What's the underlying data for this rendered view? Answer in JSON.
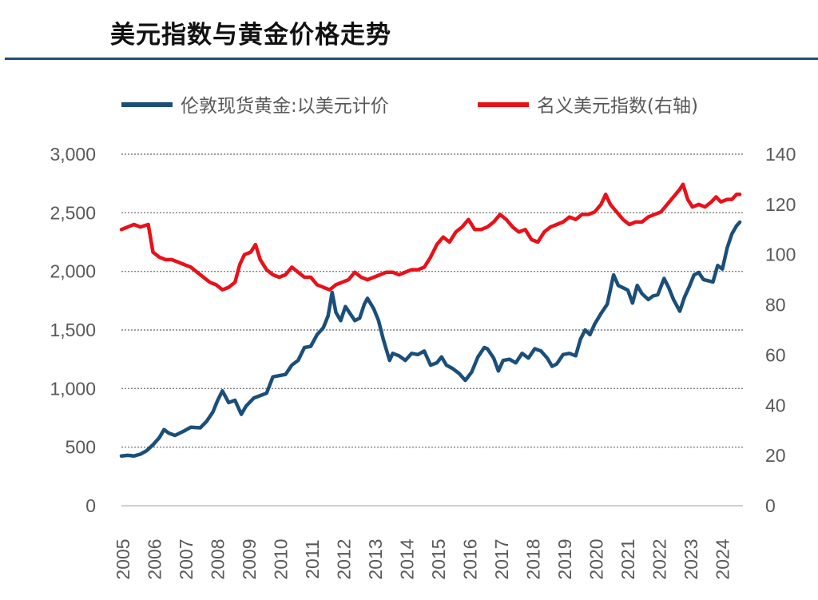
{
  "page": {
    "title": "美元指数与黄金价格走势"
  },
  "chart_data": {
    "type": "line",
    "title": "美元指数与黄金价格走势",
    "x_ticks": [
      "2005",
      "2006",
      "2007",
      "2008",
      "2009",
      "2010",
      "2011",
      "2012",
      "2013",
      "2014",
      "2015",
      "2016",
      "2017",
      "2018",
      "2019",
      "2020",
      "2021",
      "2022",
      "2023",
      "2024"
    ],
    "x_range": [
      2005.0,
      2024.7
    ],
    "y_left": {
      "min": 0,
      "max": 3000,
      "ticks": [
        "0",
        "500",
        "1,000",
        "1,500",
        "2,000",
        "2,500",
        "3,000"
      ],
      "tick_values": [
        0,
        500,
        1000,
        1500,
        2000,
        2500,
        3000
      ]
    },
    "y_right": {
      "min": 0,
      "max": 140,
      "ticks": [
        "0",
        "20",
        "40",
        "60",
        "80",
        "100",
        "120",
        "140"
      ],
      "tick_values": [
        0,
        20,
        40,
        60,
        80,
        100,
        120,
        140
      ]
    },
    "grid": "horizontal dotted",
    "legend_position": "top",
    "colors": {
      "gold": "#1b4f7a",
      "dxy": "#e8111a",
      "grid": "#7f7f7f",
      "title_rule": "#1f4e79"
    },
    "series": [
      {
        "name": "伦敦现货黄金:以美元计价",
        "axis": "left",
        "points": [
          [
            2005.0,
            425
          ],
          [
            2005.2,
            430
          ],
          [
            2005.4,
            425
          ],
          [
            2005.6,
            440
          ],
          [
            2005.8,
            470
          ],
          [
            2006.0,
            520
          ],
          [
            2006.2,
            580
          ],
          [
            2006.35,
            650
          ],
          [
            2006.5,
            620
          ],
          [
            2006.7,
            600
          ],
          [
            2007.0,
            640
          ],
          [
            2007.2,
            670
          ],
          [
            2007.5,
            665
          ],
          [
            2007.7,
            720
          ],
          [
            2007.9,
            800
          ],
          [
            2008.05,
            900
          ],
          [
            2008.2,
            980
          ],
          [
            2008.4,
            880
          ],
          [
            2008.6,
            900
          ],
          [
            2008.8,
            780
          ],
          [
            2008.95,
            850
          ],
          [
            2009.2,
            920
          ],
          [
            2009.4,
            940
          ],
          [
            2009.6,
            960
          ],
          [
            2009.8,
            1100
          ],
          [
            2010.0,
            1110
          ],
          [
            2010.2,
            1120
          ],
          [
            2010.4,
            1200
          ],
          [
            2010.6,
            1240
          ],
          [
            2010.8,
            1350
          ],
          [
            2011.0,
            1360
          ],
          [
            2011.2,
            1460
          ],
          [
            2011.4,
            1520
          ],
          [
            2011.55,
            1620
          ],
          [
            2011.68,
            1820
          ],
          [
            2011.8,
            1650
          ],
          [
            2011.95,
            1580
          ],
          [
            2012.1,
            1700
          ],
          [
            2012.25,
            1640
          ],
          [
            2012.4,
            1580
          ],
          [
            2012.55,
            1600
          ],
          [
            2012.7,
            1720
          ],
          [
            2012.8,
            1770
          ],
          [
            2013.0,
            1680
          ],
          [
            2013.15,
            1580
          ],
          [
            2013.3,
            1420
          ],
          [
            2013.5,
            1240
          ],
          [
            2013.6,
            1300
          ],
          [
            2013.8,
            1280
          ],
          [
            2014.0,
            1240
          ],
          [
            2014.2,
            1300
          ],
          [
            2014.4,
            1290
          ],
          [
            2014.6,
            1320
          ],
          [
            2014.8,
            1200
          ],
          [
            2015.0,
            1220
          ],
          [
            2015.15,
            1270
          ],
          [
            2015.3,
            1200
          ],
          [
            2015.5,
            1170
          ],
          [
            2015.7,
            1130
          ],
          [
            2015.9,
            1070
          ],
          [
            2016.1,
            1140
          ],
          [
            2016.3,
            1270
          ],
          [
            2016.5,
            1350
          ],
          [
            2016.6,
            1340
          ],
          [
            2016.8,
            1260
          ],
          [
            2016.95,
            1150
          ],
          [
            2017.1,
            1240
          ],
          [
            2017.3,
            1250
          ],
          [
            2017.5,
            1220
          ],
          [
            2017.7,
            1300
          ],
          [
            2017.9,
            1260
          ],
          [
            2018.1,
            1340
          ],
          [
            2018.3,
            1320
          ],
          [
            2018.5,
            1260
          ],
          [
            2018.65,
            1190
          ],
          [
            2018.8,
            1210
          ],
          [
            2019.0,
            1290
          ],
          [
            2019.2,
            1300
          ],
          [
            2019.4,
            1280
          ],
          [
            2019.55,
            1420
          ],
          [
            2019.7,
            1500
          ],
          [
            2019.85,
            1460
          ],
          [
            2020.0,
            1550
          ],
          [
            2020.2,
            1640
          ],
          [
            2020.4,
            1720
          ],
          [
            2020.6,
            1970
          ],
          [
            2020.75,
            1880
          ],
          [
            2020.9,
            1860
          ],
          [
            2021.05,
            1840
          ],
          [
            2021.2,
            1730
          ],
          [
            2021.35,
            1880
          ],
          [
            2021.5,
            1810
          ],
          [
            2021.7,
            1760
          ],
          [
            2021.85,
            1790
          ],
          [
            2022.0,
            1800
          ],
          [
            2022.2,
            1940
          ],
          [
            2022.35,
            1860
          ],
          [
            2022.5,
            1760
          ],
          [
            2022.7,
            1660
          ],
          [
            2022.85,
            1780
          ],
          [
            2023.0,
            1870
          ],
          [
            2023.15,
            1970
          ],
          [
            2023.3,
            1990
          ],
          [
            2023.45,
            1930
          ],
          [
            2023.6,
            1920
          ],
          [
            2023.75,
            1910
          ],
          [
            2023.9,
            2050
          ],
          [
            2024.05,
            2020
          ],
          [
            2024.2,
            2200
          ],
          [
            2024.35,
            2320
          ],
          [
            2024.5,
            2390
          ],
          [
            2024.6,
            2420
          ]
        ]
      },
      {
        "name": "名义美元指数(右轴)",
        "axis": "right",
        "points": [
          [
            2005.0,
            110
          ],
          [
            2005.2,
            111
          ],
          [
            2005.4,
            112
          ],
          [
            2005.6,
            111
          ],
          [
            2005.85,
            112
          ],
          [
            2006.0,
            101
          ],
          [
            2006.2,
            99
          ],
          [
            2006.4,
            98
          ],
          [
            2006.6,
            98
          ],
          [
            2006.8,
            97
          ],
          [
            2007.0,
            96
          ],
          [
            2007.2,
            95
          ],
          [
            2007.4,
            93
          ],
          [
            2007.6,
            91
          ],
          [
            2007.8,
            89
          ],
          [
            2008.0,
            88
          ],
          [
            2008.2,
            86
          ],
          [
            2008.4,
            87
          ],
          [
            2008.6,
            89
          ],
          [
            2008.75,
            96
          ],
          [
            2008.9,
            100
          ],
          [
            2009.1,
            101
          ],
          [
            2009.25,
            104
          ],
          [
            2009.4,
            98
          ],
          [
            2009.6,
            94
          ],
          [
            2009.8,
            92
          ],
          [
            2010.0,
            91
          ],
          [
            2010.2,
            92
          ],
          [
            2010.4,
            95
          ],
          [
            2010.6,
            93
          ],
          [
            2010.8,
            91
          ],
          [
            2011.0,
            91
          ],
          [
            2011.2,
            88
          ],
          [
            2011.4,
            87
          ],
          [
            2011.6,
            86
          ],
          [
            2011.8,
            88
          ],
          [
            2012.0,
            89
          ],
          [
            2012.2,
            90
          ],
          [
            2012.4,
            93
          ],
          [
            2012.6,
            91
          ],
          [
            2012.8,
            90
          ],
          [
            2013.0,
            91
          ],
          [
            2013.2,
            92
          ],
          [
            2013.4,
            93
          ],
          [
            2013.6,
            93
          ],
          [
            2013.8,
            92
          ],
          [
            2014.0,
            93
          ],
          [
            2014.2,
            94
          ],
          [
            2014.4,
            94
          ],
          [
            2014.6,
            95
          ],
          [
            2014.8,
            99
          ],
          [
            2015.0,
            104
          ],
          [
            2015.2,
            107
          ],
          [
            2015.4,
            105
          ],
          [
            2015.6,
            109
          ],
          [
            2015.8,
            111
          ],
          [
            2016.0,
            114
          ],
          [
            2016.2,
            110
          ],
          [
            2016.4,
            110
          ],
          [
            2016.6,
            111
          ],
          [
            2016.8,
            113
          ],
          [
            2017.0,
            116
          ],
          [
            2017.2,
            114
          ],
          [
            2017.4,
            111
          ],
          [
            2017.6,
            109
          ],
          [
            2017.8,
            110
          ],
          [
            2018.0,
            106
          ],
          [
            2018.2,
            105
          ],
          [
            2018.4,
            109
          ],
          [
            2018.6,
            111
          ],
          [
            2018.8,
            112
          ],
          [
            2019.0,
            113
          ],
          [
            2019.2,
            115
          ],
          [
            2019.4,
            114
          ],
          [
            2019.6,
            116
          ],
          [
            2019.8,
            116
          ],
          [
            2020.0,
            117
          ],
          [
            2020.2,
            120
          ],
          [
            2020.35,
            124
          ],
          [
            2020.5,
            120
          ],
          [
            2020.7,
            117
          ],
          [
            2020.9,
            114
          ],
          [
            2021.1,
            112
          ],
          [
            2021.3,
            113
          ],
          [
            2021.5,
            113
          ],
          [
            2021.7,
            115
          ],
          [
            2021.9,
            116
          ],
          [
            2022.1,
            117
          ],
          [
            2022.3,
            120
          ],
          [
            2022.5,
            123
          ],
          [
            2022.7,
            126
          ],
          [
            2022.8,
            128
          ],
          [
            2022.95,
            122
          ],
          [
            2023.1,
            119
          ],
          [
            2023.3,
            120
          ],
          [
            2023.5,
            119
          ],
          [
            2023.7,
            121
          ],
          [
            2023.85,
            123
          ],
          [
            2024.0,
            121
          ],
          [
            2024.2,
            122
          ],
          [
            2024.35,
            122
          ],
          [
            2024.5,
            124
          ],
          [
            2024.6,
            124
          ]
        ]
      }
    ]
  }
}
